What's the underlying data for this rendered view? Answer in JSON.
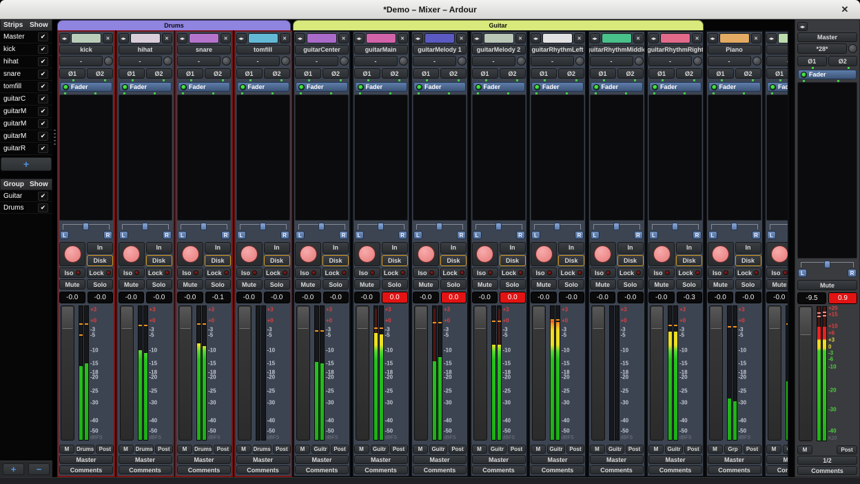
{
  "window": {
    "title": "*Demo – Mixer – Ardour",
    "close_icon": "✕"
  },
  "sidebar": {
    "strips_header": {
      "name": "Strips",
      "show": "Show"
    },
    "strip_items": [
      {
        "label": "Master",
        "checked": true
      },
      {
        "label": "kick",
        "checked": true
      },
      {
        "label": "hihat",
        "checked": true
      },
      {
        "label": "snare",
        "checked": true
      },
      {
        "label": "tomfill",
        "checked": true
      },
      {
        "label": "guitarC",
        "checked": true
      },
      {
        "label": "guitarM",
        "checked": true
      },
      {
        "label": "guitarM",
        "checked": true
      },
      {
        "label": "guitarM",
        "checked": true
      },
      {
        "label": "guitarR",
        "checked": true
      }
    ],
    "add_strip_label": "+",
    "groups_header": {
      "name": "Group",
      "show": "Show"
    },
    "group_items": [
      {
        "label": "Guitar",
        "checked": true
      },
      {
        "label": "Drums",
        "checked": true
      }
    ],
    "add_group_label": "+",
    "remove_group_label": "−"
  },
  "tabs": [
    {
      "label": "Drums",
      "color": "#8f84e0",
      "start": 0,
      "count": 4
    },
    {
      "label": "Guitar",
      "color": "#d9e97c",
      "start": 4,
      "count": 7
    }
  ],
  "shared": {
    "check": "✔",
    "width_icon": "◂▸",
    "close": "✕",
    "group_button": "-",
    "phase1": "Ø1",
    "phase2": "Ø2",
    "fader": "Fader",
    "pan_l": "L",
    "pan_r": "R",
    "input": "In",
    "disk": "Disk",
    "iso": "Iso",
    "lock": "Lock",
    "mute": "Mute",
    "solo": "Solo",
    "m": "M",
    "post": "Post",
    "output": "Master",
    "comments": "Comments",
    "scale": [
      {
        "t": "+3",
        "p": 3,
        "c": "red"
      },
      {
        "t": "+0",
        "p": 11,
        "c": "red"
      },
      {
        "t": "-3",
        "p": 17.5,
        "c": ""
      },
      {
        "t": "-5",
        "p": 21.5,
        "c": ""
      },
      {
        "t": "-10",
        "p": 32.5,
        "c": ""
      },
      {
        "t": "-15",
        "p": 42,
        "c": ""
      },
      {
        "t": "-18",
        "p": 48.5,
        "c": ""
      },
      {
        "t": "-20",
        "p": 52.5,
        "c": ""
      },
      {
        "t": "-25",
        "p": 62.5,
        "c": ""
      },
      {
        "t": "-30",
        "p": 71,
        "c": ""
      },
      {
        "t": "-40",
        "p": 84,
        "c": ""
      },
      {
        "t": "-50",
        "p": 91.5,
        "c": ""
      },
      {
        "t": "dBFS",
        "p": 96.5,
        "c": "dim"
      }
    ]
  },
  "strips": [
    {
      "name": "kick",
      "color": "#b9cdb9",
      "frame": "red",
      "group_tag": "Drums",
      "gain": "-0.0",
      "peak": "-0.0",
      "clip": false,
      "bars": [
        {
          "fill": 45,
          "peaks": [
            13,
            21
          ]
        },
        {
          "fill": 43,
          "peaks": [
            13
          ]
        }
      ]
    },
    {
      "name": "hihat",
      "color": "#d9cdd9",
      "frame": "red",
      "group_tag": "Drums",
      "gain": "-0.0",
      "peak": "-0.0",
      "clip": false,
      "bars": [
        {
          "fill": 33,
          "peaks": [
            14
          ]
        },
        {
          "fill": 35,
          "peaks": [
            14
          ]
        }
      ]
    },
    {
      "name": "snare",
      "color": "#b574cb",
      "frame": "red",
      "group_tag": "Drums",
      "gain": "-0.0",
      "peak": "-0.1",
      "clip": false,
      "bars": [
        {
          "fill": 28,
          "peaks": [
            13
          ]
        },
        {
          "fill": 30,
          "peaks": [
            13
          ]
        }
      ]
    },
    {
      "name": "tomfill",
      "color": "#63b9d5",
      "frame": "red",
      "group_tag": "Drums",
      "gain": "-0.0",
      "peak": "-0.0",
      "clip": false,
      "bars": [
        {
          "fill": 100,
          "peaks": []
        },
        {
          "fill": 100,
          "peaks": []
        }
      ]
    },
    {
      "name": "guitarCenter",
      "color": "#a96bc9",
      "frame": "dark",
      "group_tag": "Guitr",
      "gain": "-0.0",
      "peak": "-0.0",
      "clip": false,
      "bars": [
        {
          "fill": 42,
          "peaks": [
            18
          ]
        },
        {
          "fill": 43,
          "peaks": [
            18
          ]
        }
      ]
    },
    {
      "name": "guitarMain",
      "color": "#d263a9",
      "frame": "dark",
      "group_tag": "Guitr",
      "gain": "-0.0",
      "peak": "0.0",
      "clip": true,
      "bars": [
        {
          "fill": 20,
          "hist": 2,
          "peaks": [
            16
          ]
        },
        {
          "fill": 21,
          "peaks": [
            16
          ]
        }
      ]
    },
    {
      "name": "guitarMelody 1",
      "color": "#5a5ac2",
      "frame": "dark",
      "group_tag": "Guitr",
      "gain": "-0.0",
      "peak": "0.0",
      "clip": true,
      "bars": [
        {
          "fill": 41,
          "hist": 2,
          "peaks": [
            12
          ]
        },
        {
          "fill": 38,
          "peaks": [
            12
          ]
        }
      ]
    },
    {
      "name": "guitarMelody 2",
      "color": "#b9c5b5",
      "frame": "dark",
      "group_tag": "Guitr",
      "gain": "-0.0",
      "peak": "0.0",
      "clip": true,
      "bars": [
        {
          "fill": 29,
          "peaks": [
            11
          ]
        },
        {
          "fill": 29,
          "hist": 2,
          "peaks": [
            11
          ]
        }
      ]
    },
    {
      "name": "guitarRhythmLeft",
      "color": "#e2e2e2",
      "frame": "dark",
      "group_tag": "Guitr",
      "gain": "-0.0",
      "peak": "-0.0",
      "clip": false,
      "bars": [
        {
          "fill": 11,
          "peaks": [
            10
          ]
        },
        {
          "fill": 12,
          "peaks": [
            10
          ]
        }
      ]
    },
    {
      "name": "guitarRhythmMiddle",
      "color": "#49c18a",
      "frame": "dark",
      "group_tag": "Guitr",
      "gain": "-0.0",
      "peak": "-0.0",
      "clip": false,
      "bars": [
        {
          "fill": 100,
          "peaks": []
        },
        {
          "fill": 100,
          "peaks": []
        }
      ]
    },
    {
      "name": "guitarRhythmRight",
      "color": "#e16a8a",
      "frame": "dark",
      "group_tag": "Guitr",
      "gain": "-0.0",
      "peak": "-0.3",
      "clip": false,
      "bars": [
        {
          "fill": 19,
          "peaks": [
            14
          ]
        },
        {
          "fill": 19,
          "peaks": [
            14
          ]
        }
      ]
    },
    {
      "name": "Piano",
      "color": "#e2aa62",
      "frame": "dark",
      "group_tag": "Grp",
      "gain": "-0.0",
      "peak": "-0.0",
      "clip": false,
      "bars": [
        {
          "fill": 69,
          "peaks": [
            15
          ]
        },
        {
          "fill": 71,
          "peaks": [
            15
          ]
        }
      ]
    },
    {
      "name": "st",
      "color": "#bcdcae",
      "frame": "dark",
      "group_tag": "Grp",
      "gain": "-0.0",
      "peak": "-0.0",
      "clip": false,
      "partial": true,
      "bars": [
        {
          "fill": 56,
          "peaks": [
            13
          ]
        },
        {
          "fill": 58,
          "peaks": [
            13
          ]
        }
      ]
    }
  ],
  "master": {
    "name": "Master",
    "output_button": "*28*",
    "mute": "Mute",
    "gain": "-9.5",
    "peak": "0.9",
    "peak_clip": true,
    "m": "M",
    "post": "Post",
    "channel_select": "1/2",
    "comments": "Comments",
    "bars": [
      {
        "fill": 15,
        "hist": 0,
        "peaks": [
          4,
          6.5
        ]
      },
      {
        "fill": 15,
        "hist": 0,
        "peaks": [
          3.5,
          6
        ]
      }
    ],
    "scale": [
      {
        "t": "+20",
        "p": 1.5,
        "c": "red"
      },
      {
        "t": "+15",
        "p": 6,
        "c": "red"
      },
      {
        "t": "+10",
        "p": 14.5,
        "c": "red"
      },
      {
        "t": "+6",
        "p": 19.5,
        "c": "red"
      },
      {
        "t": "+3",
        "p": 24.5,
        "c": "yellow"
      },
      {
        "t": "0",
        "p": 29.5,
        "c": "yellow"
      },
      {
        "t": "-3",
        "p": 34,
        "c": "green"
      },
      {
        "t": "-6",
        "p": 38.5,
        "c": "green"
      },
      {
        "t": "-10",
        "p": 44,
        "c": "green"
      },
      {
        "t": "-20",
        "p": 61.5,
        "c": "green"
      },
      {
        "t": "-30",
        "p": 75.5,
        "c": "green"
      },
      {
        "t": "-40",
        "p": 91,
        "c": "green"
      },
      {
        "t": "K20",
        "p": 96.5,
        "c": "dim"
      }
    ]
  },
  "colors": {
    "drums_frame": "#7d1414",
    "guitar_frame": "#0d1014",
    "clip_red": "#e21313",
    "record_arm": "#ec8383",
    "disk_active_border": "#d2991f",
    "processor_blue": "#4d6c9a",
    "led_green": "#46e446"
  }
}
